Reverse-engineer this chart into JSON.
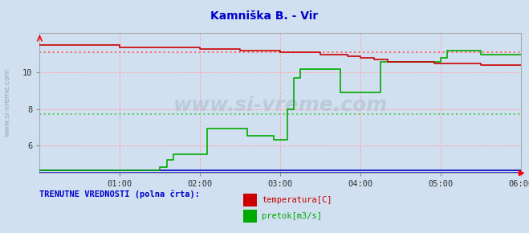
{
  "title": "Kamniška B. - Vir",
  "title_color": "#0000cc",
  "bg_color": "#d0e0f0",
  "plot_bg_color": "#d0e0f0",
  "xlabel": "",
  "ylabel": "",
  "xlim": [
    0,
    72
  ],
  "ylim": [
    4.5,
    12.2
  ],
  "yticks": [
    6,
    8,
    10
  ],
  "xtick_labels": [
    "01:00",
    "02:00",
    "03:00",
    "04:00",
    "05:00",
    "06:00"
  ],
  "xtick_positions": [
    12,
    24,
    36,
    48,
    60,
    72
  ],
  "watermark_text": "www.si-vreme.com",
  "side_text": "www.si-vreme.com",
  "legend_title": "TRENUTNE VREDNOSTI (polna črta):",
  "legend_title_color": "#0000cc",
  "temp_color": "#cc0000",
  "flow_color": "#00aa00",
  "height_color": "#0000bb",
  "temp_dotted_color": "#ff6666",
  "flow_dotted_color": "#66cc66",
  "temp_label": "temperatura[C]",
  "flow_label": "pretok[m3/s]",
  "temp_dotted_y": 11.1,
  "flow_dotted_y": 7.7,
  "temp_data_x": [
    0,
    1,
    2,
    3,
    4,
    5,
    6,
    7,
    8,
    9,
    10,
    11,
    12,
    13,
    14,
    15,
    16,
    17,
    18,
    19,
    20,
    21,
    22,
    23,
    24,
    25,
    26,
    27,
    28,
    29,
    30,
    31,
    32,
    33,
    34,
    35,
    36,
    37,
    38,
    39,
    40,
    41,
    42,
    43,
    44,
    45,
    46,
    47,
    48,
    49,
    50,
    51,
    52,
    53,
    54,
    55,
    56,
    57,
    58,
    59,
    60,
    61,
    62,
    63,
    64,
    65,
    66,
    67,
    68,
    69,
    70,
    71,
    72
  ],
  "temp_data_y": [
    11.5,
    11.5,
    11.5,
    11.5,
    11.5,
    11.5,
    11.5,
    11.5,
    11.5,
    11.5,
    11.5,
    11.5,
    11.4,
    11.4,
    11.4,
    11.4,
    11.4,
    11.4,
    11.4,
    11.4,
    11.4,
    11.4,
    11.4,
    11.4,
    11.3,
    11.3,
    11.3,
    11.3,
    11.3,
    11.3,
    11.2,
    11.2,
    11.2,
    11.2,
    11.2,
    11.2,
    11.1,
    11.1,
    11.1,
    11.1,
    11.1,
    11.1,
    11.0,
    11.0,
    11.0,
    11.0,
    10.9,
    10.9,
    10.8,
    10.8,
    10.7,
    10.7,
    10.6,
    10.6,
    10.6,
    10.6,
    10.6,
    10.6,
    10.6,
    10.5,
    10.5,
    10.5,
    10.5,
    10.5,
    10.5,
    10.5,
    10.4,
    10.4,
    10.4,
    10.4,
    10.4,
    10.4,
    10.4
  ],
  "flow_data_x": [
    0,
    1,
    2,
    3,
    4,
    5,
    6,
    7,
    8,
    9,
    10,
    11,
    12,
    13,
    14,
    15,
    16,
    17,
    18,
    19,
    20,
    21,
    22,
    23,
    24,
    25,
    26,
    27,
    28,
    29,
    30,
    31,
    32,
    33,
    34,
    35,
    36,
    37,
    38,
    39,
    40,
    41,
    42,
    43,
    44,
    45,
    46,
    47,
    48,
    49,
    50,
    51,
    52,
    53,
    54,
    55,
    56,
    57,
    58,
    59,
    60,
    61,
    62,
    63,
    64,
    65,
    66,
    67,
    68,
    69,
    70,
    71,
    72
  ],
  "flow_data_y": [
    4.6,
    4.6,
    4.6,
    4.6,
    4.6,
    4.6,
    4.6,
    4.6,
    4.6,
    4.6,
    4.6,
    4.6,
    4.6,
    4.6,
    4.6,
    4.6,
    4.6,
    4.6,
    4.8,
    5.2,
    5.5,
    5.5,
    5.5,
    5.5,
    5.5,
    6.9,
    6.9,
    6.9,
    6.9,
    6.9,
    6.9,
    6.5,
    6.5,
    6.5,
    6.5,
    6.3,
    6.3,
    8.0,
    9.7,
    10.2,
    10.2,
    10.2,
    10.2,
    10.2,
    10.2,
    8.9,
    8.9,
    8.9,
    8.9,
    8.9,
    8.9,
    10.6,
    10.6,
    10.6,
    10.6,
    10.6,
    10.6,
    10.6,
    10.6,
    10.6,
    10.8,
    11.2,
    11.2,
    11.2,
    11.2,
    11.2,
    11.0,
    11.0,
    11.0,
    11.0,
    11.0,
    11.0,
    11.0
  ],
  "height_data_x": [
    0,
    72
  ],
  "height_data_y": [
    4.6,
    4.6
  ]
}
